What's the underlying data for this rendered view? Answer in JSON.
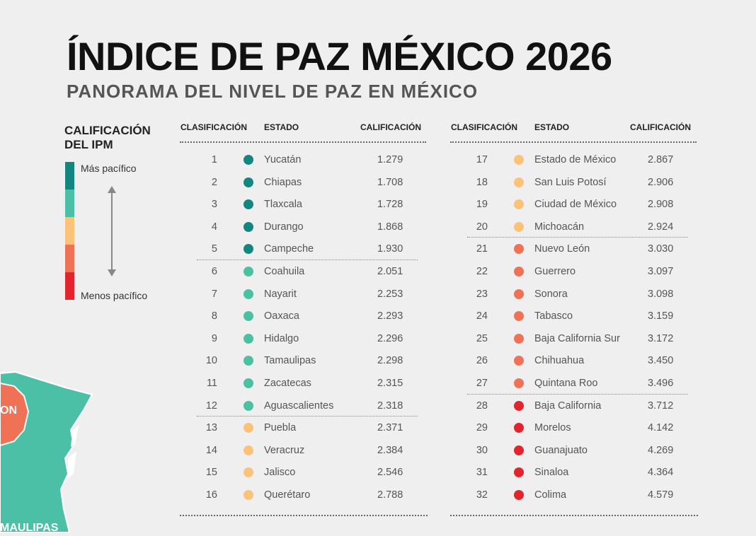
{
  "title": "ÍNDICE DE PAZ MÉXICO 2026",
  "subtitle": "PANORAMA DEL NIVEL DE PAZ EN MÉXICO",
  "legend": {
    "title": "CALIFICACIÓN DEL IPM",
    "top_label": "Más pacífico",
    "bottom_label": "Menos pacífico",
    "colors": [
      "#13877f",
      "#4cc0a6",
      "#fbc37a",
      "#ef7256",
      "#e3232d"
    ]
  },
  "map_labels": [
    "ON",
    "MAULIPAS"
  ],
  "headers": {
    "rank": "CLASIFICACIÓN",
    "state": "ESTADO",
    "score": "CALIFICACIÓN"
  },
  "left_rows": [
    {
      "rank": "1",
      "state": "Yucatán",
      "score": "1.279",
      "color": "#13877f"
    },
    {
      "rank": "2",
      "state": "Chiapas",
      "score": "1.708",
      "color": "#13877f"
    },
    {
      "rank": "3",
      "state": "Tlaxcala",
      "score": "1.728",
      "color": "#13877f"
    },
    {
      "rank": "4",
      "state": "Durango",
      "score": "1.868",
      "color": "#13877f"
    },
    {
      "rank": "5",
      "state": "Campeche",
      "score": "1.930",
      "color": "#13877f"
    },
    {
      "rank": "6",
      "state": "Coahuila",
      "score": "2.051",
      "color": "#4cc0a6"
    },
    {
      "rank": "7",
      "state": "Nayarit",
      "score": "2.253",
      "color": "#4cc0a6"
    },
    {
      "rank": "8",
      "state": "Oaxaca",
      "score": "2.293",
      "color": "#4cc0a6"
    },
    {
      "rank": "9",
      "state": "Hidalgo",
      "score": "2.296",
      "color": "#4cc0a6"
    },
    {
      "rank": "10",
      "state": "Tamaulipas",
      "score": "2.298",
      "color": "#4cc0a6"
    },
    {
      "rank": "11",
      "state": "Zacatecas",
      "score": "2.315",
      "color": "#4cc0a6"
    },
    {
      "rank": "12",
      "state": "Aguascalientes",
      "score": "2.318",
      "color": "#4cc0a6"
    },
    {
      "rank": "13",
      "state": "Puebla",
      "score": "2.371",
      "color": "#fbc37a"
    },
    {
      "rank": "14",
      "state": "Veracruz",
      "score": "2.384",
      "color": "#fbc37a"
    },
    {
      "rank": "15",
      "state": "Jalisco",
      "score": "2.546",
      "color": "#fbc37a"
    },
    {
      "rank": "16",
      "state": "Querétaro",
      "score": "2.788",
      "color": "#fbc37a"
    }
  ],
  "right_rows": [
    {
      "rank": "17",
      "state": "Estado de México",
      "score": "2.867",
      "color": "#fbc37a"
    },
    {
      "rank": "18",
      "state": "San Luis Potosí",
      "score": "2.906",
      "color": "#fbc37a"
    },
    {
      "rank": "19",
      "state": "Ciudad de México",
      "score": "2.908",
      "color": "#fbc37a"
    },
    {
      "rank": "20",
      "state": "Michoacán",
      "score": "2.924",
      "color": "#fbc37a"
    },
    {
      "rank": "21",
      "state": "Nuevo León",
      "score": "3.030",
      "color": "#ef7256"
    },
    {
      "rank": "22",
      "state": "Guerrero",
      "score": "3.097",
      "color": "#ef7256"
    },
    {
      "rank": "23",
      "state": "Sonora",
      "score": "3.098",
      "color": "#ef7256"
    },
    {
      "rank": "24",
      "state": "Tabasco",
      "score": "3.159",
      "color": "#ef7256"
    },
    {
      "rank": "25",
      "state": "Baja California Sur",
      "score": "3.172",
      "color": "#ef7256"
    },
    {
      "rank": "26",
      "state": "Chihuahua",
      "score": "3.450",
      "color": "#ef7256"
    },
    {
      "rank": "27",
      "state": "Quintana Roo",
      "score": "3.496",
      "color": "#ef7256"
    },
    {
      "rank": "28",
      "state": "Baja California",
      "score": "3.712",
      "color": "#e3232d"
    },
    {
      "rank": "29",
      "state": "Morelos",
      "score": "4.142",
      "color": "#e3232d"
    },
    {
      "rank": "30",
      "state": "Guanajuato",
      "score": "4.269",
      "color": "#e3232d"
    },
    {
      "rank": "31",
      "state": "Sinaloa",
      "score": "4.364",
      "color": "#e3232d"
    },
    {
      "rank": "32",
      "state": "Colima",
      "score": "4.579",
      "color": "#e3232d"
    }
  ]
}
